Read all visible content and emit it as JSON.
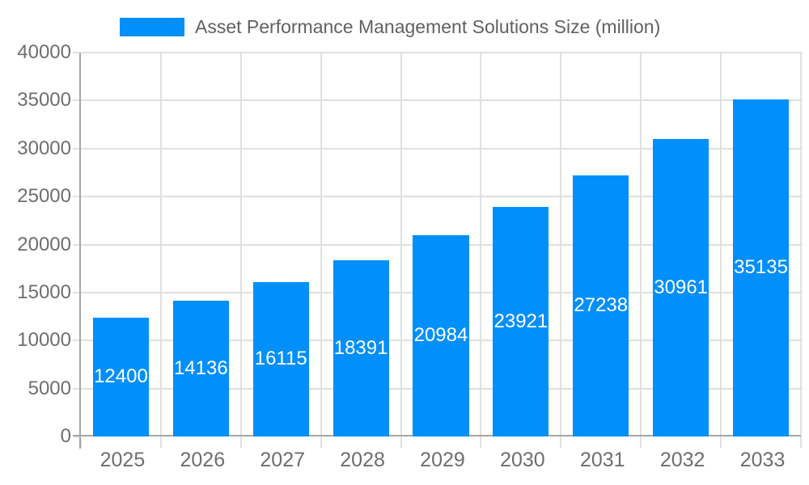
{
  "legend": {
    "label": "Asset Performance Management Solutions Size (million)"
  },
  "colors": {
    "bar": "#008FFB",
    "bar_value_label": "#FFFFFF",
    "axis_label": "#6E6E6E",
    "legend_label": "#616161",
    "grid_line": "#E0E0E0",
    "axis_line": "#A6A6A6"
  },
  "chart_data": {
    "type": "bar",
    "title": "Asset Performance Management Solutions Size (million)",
    "categories": [
      "2025",
      "2026",
      "2027",
      "2028",
      "2029",
      "2030",
      "2031",
      "2032",
      "2033"
    ],
    "values": [
      12400,
      14136,
      16115,
      18391,
      20984,
      23921,
      27238,
      30961,
      35135
    ],
    "xlabel": "",
    "ylabel": "",
    "ylim": [
      0,
      40000
    ],
    "yticks": [
      0,
      5000,
      10000,
      15000,
      20000,
      25000,
      30000,
      35000,
      40000
    ],
    "grid": "on",
    "legend_position": "top",
    "value_label_position": "inside-center"
  }
}
